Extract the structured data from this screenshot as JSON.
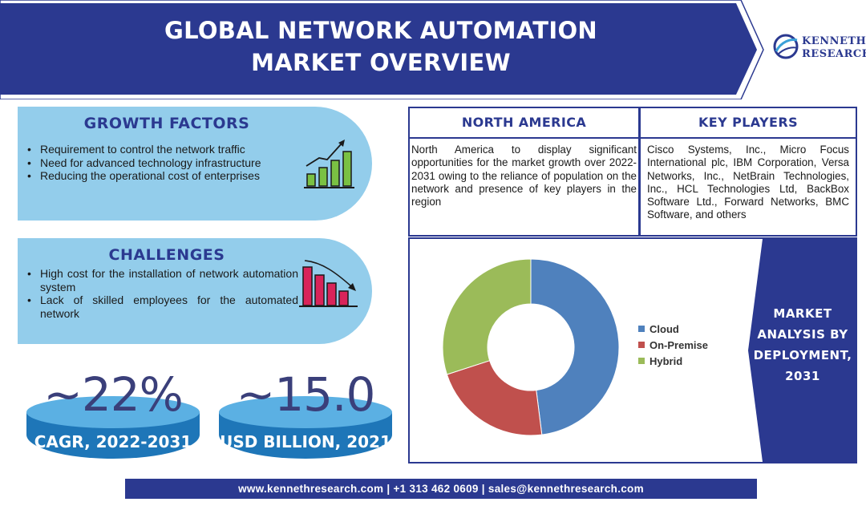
{
  "header": {
    "title_line1": "GLOBAL NETWORK AUTOMATION",
    "title_line2": "MARKET OVERVIEW",
    "logo_line1": "KENNETH",
    "logo_line2": "RESEARCH",
    "logo_icon": "globe-swoosh-icon"
  },
  "colors": {
    "navy": "#2b3990",
    "panel_blue": "#93cdeb",
    "cloud": "#4f81bd",
    "on_premise": "#c0504d",
    "hybrid": "#9bbb59"
  },
  "growth_factors": {
    "title": "GROWTH FACTORS",
    "bullets": [
      "Requirement to control the network traffic",
      "Need for advanced technology infrastructure",
      "Reducing the operational cost of enterprises"
    ],
    "icon": "rising-bar-chart-icon"
  },
  "challenges": {
    "title": "CHALLENGES",
    "bullets": [
      "High cost for the installation of network automation system",
      "Lack of skilled employees for the automated network"
    ],
    "icon": "falling-bar-chart-icon"
  },
  "stats": {
    "cagr_value": "~22%",
    "cagr_label": "CAGR, 2022-2031",
    "usd_value": "~15.0",
    "usd_label": "USD BILLION, 2021"
  },
  "north_america": {
    "title": "NORTH AMERICA",
    "text": "North America to display significant opportunities for the market growth over 2022-2031 owing to the reliance of population on the network and presence of key players in the region"
  },
  "key_players": {
    "title": "KEY PLAYERS",
    "text": "Cisco Systems, Inc., Micro Focus International plc, IBM Corporation, Versa Networks, Inc., NetBrain Technologies, Inc., HCL Technologies Ltd, BackBox Software Ltd., Forward Networks, BMC Software, and others"
  },
  "market_analysis": {
    "line1": "MARKET",
    "line2": "ANALYSIS BY",
    "line3": "DEPLOYMENT,",
    "line4": "2031"
  },
  "chart_data": {
    "type": "pie",
    "donut": true,
    "categories": [
      "Cloud",
      "On-Premise",
      "Hybrid"
    ],
    "values": [
      48,
      22,
      30
    ],
    "colors": [
      "#4f81bd",
      "#c0504d",
      "#9bbb59"
    ],
    "legend": "right",
    "title": ""
  },
  "footer": {
    "text": "www.kennethresearch.com | +1 313 462 0609 | sales@kennethresearch.com"
  }
}
